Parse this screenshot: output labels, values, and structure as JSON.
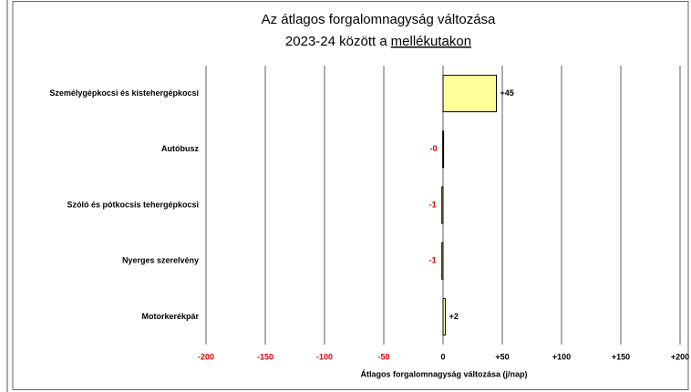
{
  "chart_data": {
    "type": "hbar",
    "title_lines": [
      "Az átlagos forgalomnagyság változása",
      "2023-24 között a"
    ],
    "title_underlined": "mellékutakon",
    "x_label": "Átlagos forgalomnagyság változása (j/nap)",
    "categories": [
      "Személygépkocsi és kistehergépkocsi",
      "Autóbusz",
      "Szóló és pótkocsis tehergépkocsi",
      "Nyerges szerelvény",
      "Motorkerékpár"
    ],
    "values": [
      45,
      -0.3,
      -1,
      -1,
      2
    ],
    "value_labels": [
      "+45",
      "-0",
      "-1",
      "-1",
      "+2"
    ],
    "color": "#ffff99",
    "negative_label_color": "#e00000",
    "xlim": [
      -200,
      200
    ],
    "xticks": [
      -200,
      -150,
      -100,
      -50,
      0,
      {
        "value": 50,
        "label": "+50"
      },
      {
        "value": 100,
        "label": "+100"
      },
      {
        "value": 150,
        "label": "+150"
      },
      {
        "value": 200,
        "label": "+200"
      }
    ],
    "grid": true
  }
}
